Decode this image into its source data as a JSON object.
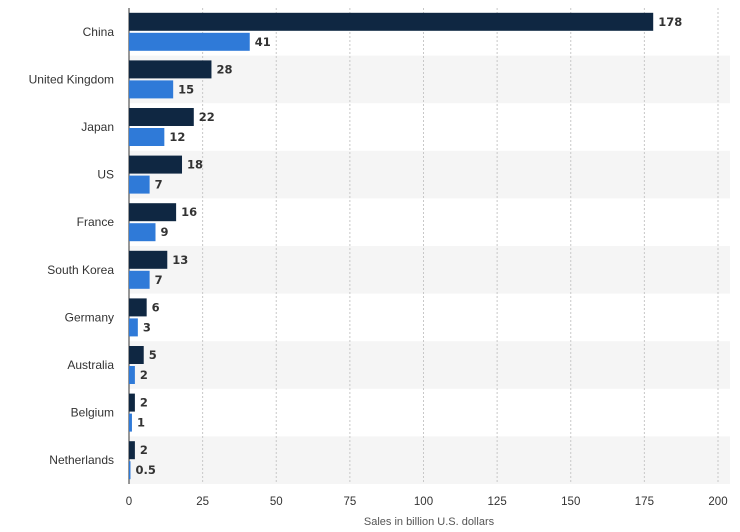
{
  "chart_data": {
    "type": "bar",
    "orientation": "horizontal",
    "categories": [
      "China",
      "United Kingdom",
      "Japan",
      "US",
      "France",
      "South Korea",
      "Germany",
      "Australia",
      "Belgium",
      "Netherlands"
    ],
    "series": [
      {
        "values": [
          178,
          28,
          22,
          18,
          16,
          13,
          6,
          5,
          2,
          2
        ],
        "value_labels": [
          "178",
          "28",
          "22",
          "18",
          "16",
          "13",
          "6",
          "5",
          "2",
          "2"
        ],
        "color": "#0f2742"
      },
      {
        "values": [
          41,
          15,
          12,
          7,
          9,
          7,
          3,
          2,
          1,
          0.5
        ],
        "value_labels": [
          "41",
          "15",
          "12",
          "7",
          "9",
          "7",
          "3",
          "2",
          "1",
          "0.5"
        ],
        "color": "#2f7ad8"
      }
    ],
    "xlabel": "Sales in billion U.S. dollars",
    "ylabel": "",
    "xlim": [
      0,
      200
    ],
    "xticks": [
      "0",
      "25",
      "50",
      "75",
      "100",
      "125",
      "150",
      "175",
      "200"
    ],
    "grid": "vertical dotted",
    "legend": "none",
    "band_color": "#f5f5f5"
  }
}
